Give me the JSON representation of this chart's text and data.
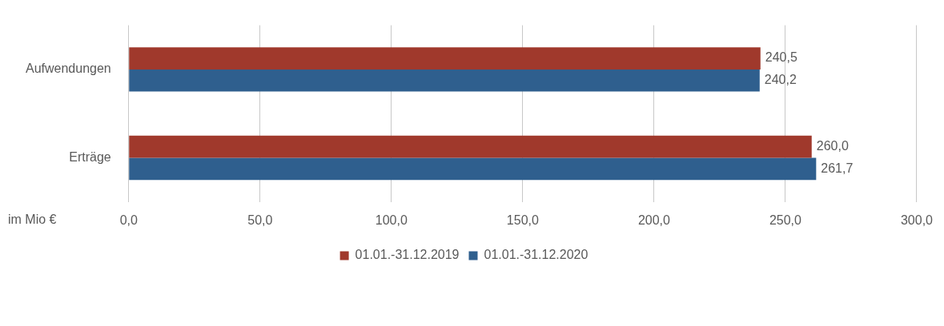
{
  "chart_data": {
    "type": "bar",
    "orientation": "horizontal",
    "xlabel": "im Mio €",
    "categories": [
      "Aufwendungen",
      "Erträge"
    ],
    "series": [
      {
        "name": "01.01.-31.12.2019",
        "color": "#a0392c",
        "values": [
          240.5,
          260.0
        ],
        "value_labels": [
          "240,5",
          "260,0"
        ]
      },
      {
        "name": "01.01.-31.12.2020",
        "color": "#2f5f8e",
        "values": [
          240.2,
          261.7
        ],
        "value_labels": [
          "240,2",
          "261,7"
        ]
      }
    ],
    "xlim": [
      0,
      300
    ],
    "xticks": [
      {
        "value": 0,
        "label": "0,0"
      },
      {
        "value": 50,
        "label": "50,0"
      },
      {
        "value": 100,
        "label": "100,0"
      },
      {
        "value": 150,
        "label": "150,0"
      },
      {
        "value": 200,
        "label": "200,0"
      },
      {
        "value": 250,
        "label": "250,0"
      },
      {
        "value": 300,
        "label": "300,0"
      }
    ],
    "grid": "x",
    "legend": "bottom"
  }
}
